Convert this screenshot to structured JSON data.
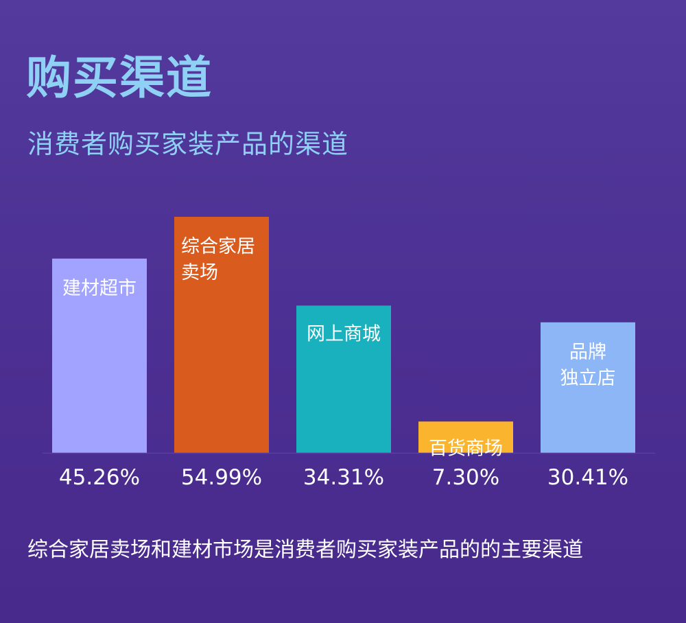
{
  "title": "购买渠道",
  "subtitle": "消费者购买家装产品的渠道",
  "footer": "综合家居卖场和建材市场是消费者购买家装产品的的主要渠道",
  "chart_data": {
    "type": "bar",
    "categories": [
      "建材超市",
      "综合家居卖场",
      "网上商城",
      "百货商场",
      "品牌独立店"
    ],
    "bar_labels": [
      [
        "建材超市"
      ],
      [
        "综合家居",
        "卖场"
      ],
      [
        "网上商城"
      ],
      [
        "百货商场"
      ],
      [
        "品牌",
        "独立店"
      ]
    ],
    "values": [
      45.26,
      54.99,
      34.31,
      7.3,
      30.41
    ],
    "value_labels": [
      "45.26%",
      "54.99%",
      "34.31%",
      "7.30%",
      "30.41%"
    ],
    "colors": [
      "#a1a3ff",
      "#d95c1e",
      "#1ab1be",
      "#fab42d",
      "#8db6f7"
    ],
    "grid": false,
    "legend": "none"
  }
}
